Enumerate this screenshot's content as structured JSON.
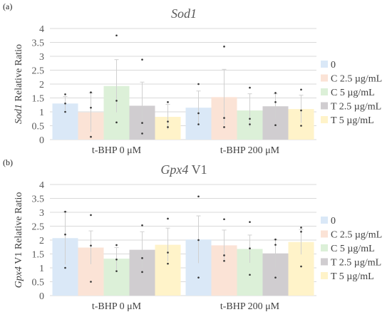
{
  "panels": [
    {
      "letter": "(a)",
      "legend_labels": [
        "0",
        "C 2.5 µg/mL",
        "C 5 µg/mL",
        "T 2.5 µg/mL",
        "T 5 µg/mL"
      ]
    },
    {
      "letter": "(b)",
      "legend_labels": [
        "0",
        "C 2.5 µg/mL",
        "C 5 µg/mL",
        "T 2.5 µg/mL",
        "T 5 µg/mL"
      ]
    }
  ],
  "colors": [
    "#dae8f7",
    "#fbe3d6",
    "#dcf0d8",
    "#d0cdd0",
    "#fff3c9"
  ],
  "chart_data": [
    {
      "type": "bar",
      "title": "Sod1",
      "title_italic_part": "Sod1",
      "title_rest": "",
      "ylabel": "Sod1 Relative Ratio",
      "ylabel_italic_part": "Sod1",
      "ylabel_rest": " Relative Ratio",
      "categories": [
        "t-BHP 0 μM",
        "t-BHP 200 μM"
      ],
      "ylim": [
        0,
        4
      ],
      "yticks": [
        "0",
        "0.5",
        "1",
        "1.5",
        "2",
        "2.5",
        "3",
        "3.5",
        "4"
      ],
      "grid": true,
      "legend_position": "right",
      "series": [
        {
          "name": "0",
          "values": [
            1.3,
            1.15
          ],
          "error": [
            0.25,
            0.6
          ],
          "points": [
            [
              1.0,
              1.3,
              1.63
            ],
            [
              0.55,
              0.95,
              2.0
            ]
          ]
        },
        {
          "name": "C 2.5 µg/mL",
          "values": [
            0.98,
            1.53
          ],
          "error": [
            0.7,
            1.0
          ],
          "points": [
            [
              0.1,
              1.15,
              1.7
            ],
            [
              0.45,
              0.78,
              3.35
            ]
          ]
        },
        {
          "name": "C 5 µg/mL",
          "values": [
            1.93,
            1.05
          ],
          "error": [
            0.95,
            0.6
          ],
          "points": [
            [
              0.62,
              1.4,
              3.75
            ],
            [
              0.55,
              0.75,
              1.87
            ]
          ]
        },
        {
          "name": "T 2.5 µg/mL",
          "values": [
            1.22,
            1.2
          ],
          "error": [
            0.85,
            0.45
          ],
          "points": [
            [
              0.22,
              0.6,
              2.88
            ],
            [
              0.52,
              1.35,
              1.68
            ]
          ]
        },
        {
          "name": "T 5 µg/mL",
          "values": [
            0.82,
            1.1
          ],
          "error": [
            0.45,
            0.5
          ],
          "points": [
            [
              0.45,
              0.65,
              1.35
            ],
            [
              0.5,
              1.05,
              1.8
            ]
          ]
        }
      ]
    },
    {
      "type": "bar",
      "title": "Gpx4 V1",
      "title_italic_part": "Gpx4",
      "title_rest": " V1",
      "ylabel": "Gpx4 V1 Relative Ratio",
      "ylabel_italic_part": "Gpx4",
      "ylabel_rest": " V1 Relative Ratio",
      "categories": [
        "t-BHP 0 μM",
        "t-BHP 200 μM"
      ],
      "ylim": [
        0,
        4
      ],
      "yticks": [
        "0",
        "0.5",
        "1",
        "1.5",
        "2",
        "2.5",
        "3",
        "3.5",
        "4"
      ],
      "grid": true,
      "legend_position": "right",
      "series": [
        {
          "name": "0",
          "values": [
            2.07,
            2.02
          ],
          "error": [
            0.95,
            0.85
          ],
          "points": [
            [
              1.0,
              2.2,
              3.02
            ],
            [
              0.65,
              2.0,
              3.57
            ]
          ]
        },
        {
          "name": "C 2.5 µg/mL",
          "values": [
            1.73,
            1.81
          ],
          "error": [
            0.6,
            0.55
          ],
          "points": [
            [
              0.5,
              1.8,
              2.9
            ],
            [
              1.25,
              1.45,
              2.75
            ]
          ]
        },
        {
          "name": "C 5 µg/mL",
          "values": [
            1.33,
            1.68
          ],
          "error": [
            0.4,
            0.5
          ],
          "points": [
            [
              0.88,
              1.3,
              1.82
            ],
            [
              0.75,
              1.7,
              2.65
            ]
          ]
        },
        {
          "name": "T 2.5 µg/mL",
          "values": [
            1.65,
            1.52
          ],
          "error": [
            0.65,
            0.5
          ],
          "points": [
            [
              0.85,
              1.35,
              2.53
            ],
            [
              0.65,
              1.83,
              2.02
            ]
          ]
        },
        {
          "name": "T 5 µg/mL",
          "values": [
            1.83,
            1.93
          ],
          "error": [
            0.6,
            0.45
          ],
          "points": [
            [
              1.15,
              1.55,
              2.77
            ],
            [
              1.05,
              2.3,
              2.45
            ]
          ]
        }
      ]
    }
  ]
}
